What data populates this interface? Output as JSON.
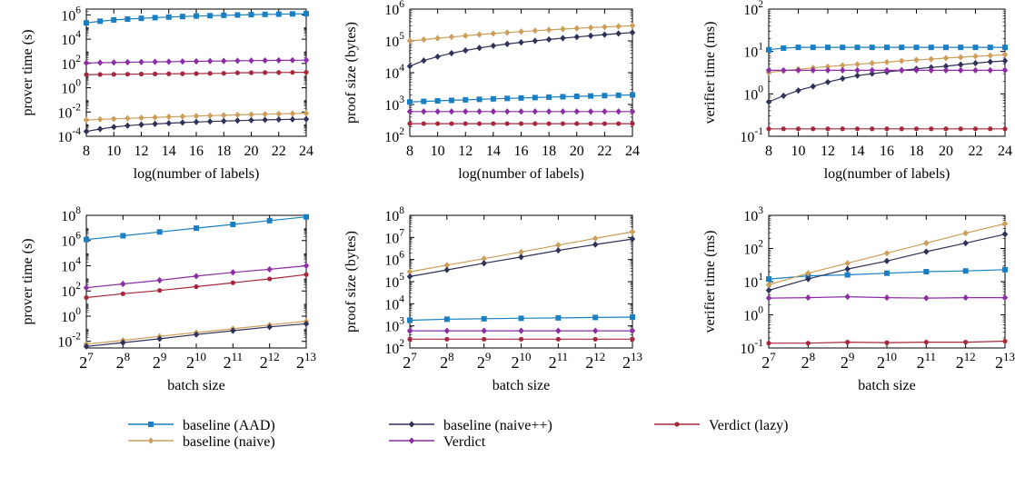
{
  "colors": {
    "baseline_aad": "#1a7fc2",
    "baseline_naive": "#cc9e5a",
    "baseline_naivepp": "#2e3158",
    "verdict": "#8b2ea3",
    "verdict_lazy": "#a6283c"
  },
  "legend": {
    "placement": "bottom",
    "items": [
      "baseline (AAD)",
      "baseline (naive)",
      "baseline (naive++)",
      "Verdict",
      "Verdict (lazy)"
    ]
  },
  "chart_data": [
    {
      "type": "line",
      "log_y": true,
      "xlabel": "log(number of labels)",
      "ylabel": "prover time (s)",
      "xlim": [
        8,
        24
      ],
      "ylim": [
        0.0001,
        3000000
      ],
      "x_ticks": [
        "8",
        "10",
        "12",
        "14",
        "16",
        "18",
        "20",
        "22",
        "24"
      ],
      "y_ticks": [
        {
          "base": "10",
          "exp": "-4"
        },
        {
          "base": "10",
          "exp": "-2"
        },
        {
          "base": "10",
          "exp": "0"
        },
        {
          "base": "10",
          "exp": "2"
        },
        {
          "base": "10",
          "exp": "4"
        },
        {
          "base": "10",
          "exp": "6"
        }
      ],
      "x": [
        8,
        9,
        10,
        11,
        12,
        13,
        14,
        15,
        16,
        17,
        18,
        19,
        20,
        21,
        22,
        23,
        24
      ],
      "series": [
        {
          "name": "baseline (AAD)",
          "values": [
            220000,
            300000,
            380000,
            450000,
            520000,
            590000,
            660000,
            730000,
            800000,
            860000,
            920000,
            980000,
            1040000,
            1100000,
            1150000,
            1200000,
            1250000
          ]
        },
        {
          "name": "baseline (naive)",
          "values": [
            0.0022,
            0.0025,
            0.0027,
            0.003,
            0.0033,
            0.0036,
            0.004,
            0.0043,
            0.0047,
            0.005,
            0.0054,
            0.0058,
            0.0062,
            0.0066,
            0.007,
            0.0074,
            0.0078
          ]
        },
        {
          "name": "baseline (naive++)",
          "values": [
            0.00025,
            0.0004,
            0.00058,
            0.00075,
            0.0009,
            0.00105,
            0.0012,
            0.00135,
            0.0015,
            0.00165,
            0.0018,
            0.00195,
            0.0021,
            0.00225,
            0.0024,
            0.0025,
            0.0026
          ]
        },
        {
          "name": "Verdict",
          "values": [
            110,
            115,
            120,
            125,
            130,
            135,
            140,
            145,
            150,
            155,
            160,
            165,
            170,
            175,
            180,
            183,
            185
          ]
        },
        {
          "name": "Verdict (lazy)",
          "values": [
            12,
            12.3,
            12.6,
            13,
            13.3,
            13.6,
            14,
            14.3,
            14.6,
            15,
            15.3,
            17,
            17.3,
            17.6,
            18,
            18.3,
            18.6
          ]
        }
      ]
    },
    {
      "type": "line",
      "log_y": true,
      "xlabel": "log(number of labels)",
      "ylabel": "proof size (bytes)",
      "xlim": [
        8,
        24
      ],
      "ylim": [
        100,
        1000000
      ],
      "x_ticks": [
        "8",
        "10",
        "12",
        "14",
        "16",
        "18",
        "20",
        "22",
        "24"
      ],
      "y_ticks": [
        {
          "base": "10",
          "exp": "2"
        },
        {
          "base": "10",
          "exp": "3"
        },
        {
          "base": "10",
          "exp": "4"
        },
        {
          "base": "10",
          "exp": "5"
        },
        {
          "base": "10",
          "exp": "6"
        }
      ],
      "x": [
        8,
        9,
        10,
        11,
        12,
        13,
        14,
        15,
        16,
        17,
        18,
        19,
        20,
        21,
        22,
        23,
        24
      ],
      "series": [
        {
          "name": "baseline (AAD)",
          "values": [
            1200,
            1250,
            1300,
            1350,
            1400,
            1450,
            1500,
            1550,
            1600,
            1650,
            1700,
            1750,
            1800,
            1850,
            1900,
            1950,
            2000
          ]
        },
        {
          "name": "baseline (naive)",
          "values": [
            100000,
            110000,
            121000,
            133000,
            145000,
            158000,
            170000,
            183000,
            196000,
            209000,
            222000,
            235000,
            248000,
            261000,
            274000,
            287000,
            300000
          ]
        },
        {
          "name": "baseline (naive++)",
          "values": [
            16000,
            24000,
            32000,
            41000,
            50000,
            60000,
            70000,
            80000,
            90000,
            100000,
            111000,
            122000,
            133000,
            145000,
            157000,
            170000,
            183000
          ]
        },
        {
          "name": "Verdict",
          "values": [
            600,
            600,
            600,
            600,
            600,
            600,
            600,
            600,
            600,
            600,
            600,
            600,
            600,
            600,
            600,
            600,
            600
          ]
        },
        {
          "name": "Verdict (lazy)",
          "values": [
            250,
            250,
            250,
            250,
            250,
            250,
            250,
            250,
            250,
            250,
            250,
            250,
            250,
            250,
            250,
            250,
            250
          ]
        }
      ]
    },
    {
      "type": "line",
      "log_y": true,
      "xlabel": "log(number of labels)",
      "ylabel": "verifier time (ms)",
      "xlim": [
        8,
        24
      ],
      "ylim": [
        0.1,
        100
      ],
      "x_ticks": [
        "8",
        "10",
        "12",
        "14",
        "16",
        "18",
        "20",
        "22",
        "24"
      ],
      "y_ticks": [
        {
          "base": "10",
          "exp": "-1"
        },
        {
          "base": "10",
          "exp": "0"
        },
        {
          "base": "10",
          "exp": "1"
        },
        {
          "base": "10",
          "exp": "2"
        }
      ],
      "x": [
        8,
        9,
        10,
        11,
        12,
        13,
        14,
        15,
        16,
        17,
        18,
        19,
        20,
        21,
        22,
        23,
        24
      ],
      "series": [
        {
          "name": "baseline (AAD)",
          "values": [
            11,
            12,
            12.5,
            12.5,
            12.5,
            12.5,
            12.5,
            12.5,
            12.5,
            12.5,
            12.5,
            12.5,
            12.5,
            12.5,
            12.5,
            12.5,
            12.5
          ]
        },
        {
          "name": "baseline (naive)",
          "values": [
            3.2,
            3.5,
            3.8,
            4.1,
            4.4,
            4.7,
            5,
            5.3,
            5.6,
            6,
            6.3,
            6.6,
            7,
            7.3,
            7.7,
            8,
            8.4
          ]
        },
        {
          "name": "baseline (naive++)",
          "values": [
            0.65,
            0.9,
            1.2,
            1.5,
            1.9,
            2.3,
            2.7,
            3,
            3.3,
            3.6,
            3.9,
            4.2,
            4.5,
            4.9,
            5.3,
            5.7,
            6
          ]
        },
        {
          "name": "Verdict",
          "values": [
            3.6,
            3.6,
            3.6,
            3.6,
            3.6,
            3.6,
            3.6,
            3.6,
            3.6,
            3.6,
            3.6,
            3.6,
            3.6,
            3.6,
            3.6,
            3.6,
            3.6
          ]
        },
        {
          "name": "Verdict (lazy)",
          "values": [
            0.15,
            0.15,
            0.15,
            0.15,
            0.15,
            0.15,
            0.15,
            0.15,
            0.15,
            0.15,
            0.15,
            0.15,
            0.15,
            0.15,
            0.15,
            0.15,
            0.15
          ]
        }
      ]
    },
    {
      "type": "line",
      "log_y": true,
      "xlabel": "batch size",
      "ylabel": "prover time (s)",
      "xlim": [
        7,
        13
      ],
      "ylim": [
        0.003,
        100000000
      ],
      "x_ticks": [
        {
          "base": "2",
          "exp": "7"
        },
        {
          "base": "2",
          "exp": "8"
        },
        {
          "base": "2",
          "exp": "9"
        },
        {
          "base": "2",
          "exp": "10"
        },
        {
          "base": "2",
          "exp": "11"
        },
        {
          "base": "2",
          "exp": "12"
        },
        {
          "base": "2",
          "exp": "13"
        }
      ],
      "y_ticks": [
        {
          "base": "10",
          "exp": "-2"
        },
        {
          "base": "10",
          "exp": "0"
        },
        {
          "base": "10",
          "exp": "2"
        },
        {
          "base": "10",
          "exp": "4"
        },
        {
          "base": "10",
          "exp": "6"
        },
        {
          "base": "10",
          "exp": "8"
        }
      ],
      "x": [
        7,
        8,
        9,
        10,
        11,
        12,
        13
      ],
      "series": [
        {
          "name": "baseline (AAD)",
          "values": [
            1200000,
            2400000,
            4800000,
            9600000,
            19000000,
            38000000,
            75000000
          ]
        },
        {
          "name": "baseline (naive)",
          "values": [
            0.006,
            0.012,
            0.025,
            0.05,
            0.1,
            0.2,
            0.4
          ]
        },
        {
          "name": "baseline (naive++)",
          "values": [
            0.004,
            0.008,
            0.016,
            0.035,
            0.07,
            0.14,
            0.25
          ]
        },
        {
          "name": "Verdict",
          "values": [
            180,
            360,
            700,
            1500,
            3000,
            5200,
            10000
          ]
        },
        {
          "name": "Verdict (lazy)",
          "values": [
            30,
            60,
            110,
            220,
            450,
            900,
            2000
          ]
        }
      ]
    },
    {
      "type": "line",
      "log_y": true,
      "xlabel": "batch size",
      "ylabel": "proof size (bytes)",
      "xlim": [
        7,
        13
      ],
      "ylim": [
        100,
        100000000
      ],
      "x_ticks": [
        {
          "base": "2",
          "exp": "7"
        },
        {
          "base": "2",
          "exp": "8"
        },
        {
          "base": "2",
          "exp": "9"
        },
        {
          "base": "2",
          "exp": "10"
        },
        {
          "base": "2",
          "exp": "11"
        },
        {
          "base": "2",
          "exp": "12"
        },
        {
          "base": "2",
          "exp": "13"
        }
      ],
      "y_ticks": [
        {
          "base": "10",
          "exp": "2"
        },
        {
          "base": "10",
          "exp": "3"
        },
        {
          "base": "10",
          "exp": "4"
        },
        {
          "base": "10",
          "exp": "5"
        },
        {
          "base": "10",
          "exp": "6"
        },
        {
          "base": "10",
          "exp": "7"
        },
        {
          "base": "10",
          "exp": "8"
        }
      ],
      "x": [
        7,
        8,
        9,
        10,
        11,
        12,
        13
      ],
      "series": [
        {
          "name": "baseline (AAD)",
          "values": [
            1800,
            2000,
            2100,
            2200,
            2300,
            2400,
            2500
          ]
        },
        {
          "name": "baseline (naive)",
          "values": [
            280000,
            560000,
            1100000,
            2200000,
            4500000,
            9000000,
            18000000
          ]
        },
        {
          "name": "baseline (naive++)",
          "values": [
            170000,
            340000,
            680000,
            1300000,
            2600000,
            4800000,
            8500000
          ]
        },
        {
          "name": "Verdict",
          "values": [
            600,
            600,
            600,
            600,
            600,
            600,
            600
          ]
        },
        {
          "name": "Verdict (lazy)",
          "values": [
            250,
            250,
            250,
            250,
            250,
            250,
            250
          ]
        }
      ]
    },
    {
      "type": "line",
      "log_y": true,
      "xlabel": "batch size",
      "ylabel": "verifier time (ms)",
      "xlim": [
        7,
        13
      ],
      "ylim": [
        0.1,
        1000
      ],
      "x_ticks": [
        {
          "base": "2",
          "exp": "7"
        },
        {
          "base": "2",
          "exp": "8"
        },
        {
          "base": "2",
          "exp": "9"
        },
        {
          "base": "2",
          "exp": "10"
        },
        {
          "base": "2",
          "exp": "11"
        },
        {
          "base": "2",
          "exp": "12"
        },
        {
          "base": "2",
          "exp": "13"
        }
      ],
      "y_ticks": [
        {
          "base": "10",
          "exp": "-1"
        },
        {
          "base": "10",
          "exp": "0"
        },
        {
          "base": "10",
          "exp": "1"
        },
        {
          "base": "10",
          "exp": "2"
        },
        {
          "base": "10",
          "exp": "3"
        }
      ],
      "x": [
        7,
        8,
        9,
        10,
        11,
        12,
        13
      ],
      "series": [
        {
          "name": "baseline (AAD)",
          "values": [
            12,
            15,
            16,
            18,
            20,
            21,
            23
          ]
        },
        {
          "name": "baseline (naive)",
          "values": [
            8,
            18,
            36,
            72,
            145,
            290,
            560
          ]
        },
        {
          "name": "baseline (naive++)",
          "values": [
            5.5,
            12,
            24,
            42,
            80,
            145,
            270
          ]
        },
        {
          "name": "Verdict",
          "values": [
            3.2,
            3.3,
            3.5,
            3.3,
            3.2,
            3.3,
            3.3
          ]
        },
        {
          "name": "Verdict (lazy)",
          "values": [
            0.14,
            0.14,
            0.15,
            0.145,
            0.15,
            0.15,
            0.16
          ]
        }
      ]
    }
  ]
}
